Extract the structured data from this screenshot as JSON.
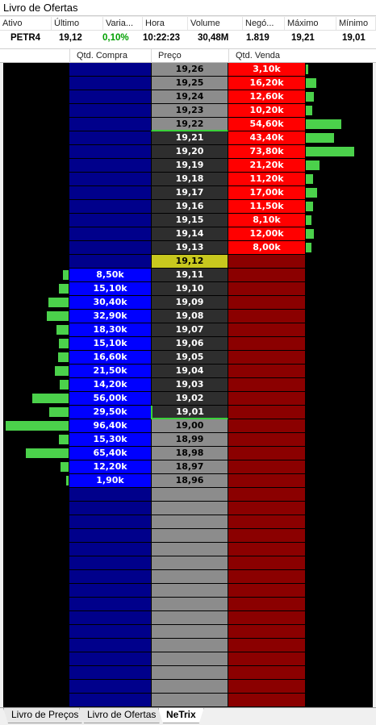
{
  "window": {
    "title": "Livro de Ofertas"
  },
  "quote": {
    "headers": [
      "Ativo",
      "Último",
      "Varia...",
      "Hora",
      "Volume",
      "Negó...",
      "Máximo",
      "Mínimo"
    ],
    "symbol": "PETR4",
    "last": "19,12",
    "variation": "0,10%",
    "time": "10:22:23",
    "volume": "30,48M",
    "trades": "1.819",
    "max": "19,21",
    "min": "19,01"
  },
  "columns": {
    "buy": "Qtd. Compra",
    "price": "Preço",
    "sell": "Qtd. Venda"
  },
  "colors": {
    "buy_active": "#0000ff",
    "buy_empty": "#00008b",
    "sell_active": "#ff0000",
    "sell_empty": "#8b0000",
    "price_light": "#8c8c8c",
    "price_dark": "#2e2e2e",
    "last_price": "#c8c81e",
    "bar": "#4bd14b"
  },
  "book": [
    {
      "price": "19,26",
      "sell": "3,10k",
      "buy": ""
    },
    {
      "price": "19,25",
      "sell": "16,20k",
      "buy": ""
    },
    {
      "price": "19,24",
      "sell": "12,60k",
      "buy": ""
    },
    {
      "price": "19,23",
      "sell": "10,20k",
      "buy": ""
    },
    {
      "price": "19,22",
      "sell": "54,60k",
      "buy": ""
    },
    {
      "price": "19,21",
      "sell": "43,40k",
      "buy": ""
    },
    {
      "price": "19,20",
      "sell": "73,80k",
      "buy": ""
    },
    {
      "price": "19,19",
      "sell": "21,20k",
      "buy": ""
    },
    {
      "price": "19,18",
      "sell": "11,20k",
      "buy": ""
    },
    {
      "price": "19,17",
      "sell": "17,00k",
      "buy": ""
    },
    {
      "price": "19,16",
      "sell": "11,50k",
      "buy": ""
    },
    {
      "price": "19,15",
      "sell": "8,10k",
      "buy": ""
    },
    {
      "price": "19,14",
      "sell": "12,00k",
      "buy": ""
    },
    {
      "price": "19,13",
      "sell": "8,00k",
      "buy": ""
    },
    {
      "price": "19,12",
      "sell": "",
      "buy": ""
    },
    {
      "price": "19,11",
      "sell": "",
      "buy": "8,50k"
    },
    {
      "price": "19,10",
      "sell": "",
      "buy": "15,10k"
    },
    {
      "price": "19,09",
      "sell": "",
      "buy": "30,40k"
    },
    {
      "price": "19,08",
      "sell": "",
      "buy": "32,90k"
    },
    {
      "price": "19,07",
      "sell": "",
      "buy": "18,30k"
    },
    {
      "price": "19,06",
      "sell": "",
      "buy": "15,10k"
    },
    {
      "price": "19,05",
      "sell": "",
      "buy": "16,60k"
    },
    {
      "price": "19,04",
      "sell": "",
      "buy": "21,50k"
    },
    {
      "price": "19,03",
      "sell": "",
      "buy": "14,20k"
    },
    {
      "price": "19,02",
      "sell": "",
      "buy": "56,00k"
    },
    {
      "price": "19,01",
      "sell": "",
      "buy": "29,50k"
    },
    {
      "price": "19,00",
      "sell": "",
      "buy": "96,40k"
    },
    {
      "price": "18,99",
      "sell": "",
      "buy": "15,30k"
    },
    {
      "price": "18,98",
      "sell": "",
      "buy": "65,40k"
    },
    {
      "price": "18,97",
      "sell": "",
      "buy": "12,20k"
    },
    {
      "price": "18,96",
      "sell": "",
      "buy": "1,90k"
    }
  ],
  "tabs": [
    "Livro de Preços",
    "Livro de Ofertas",
    "NeTrix"
  ]
}
